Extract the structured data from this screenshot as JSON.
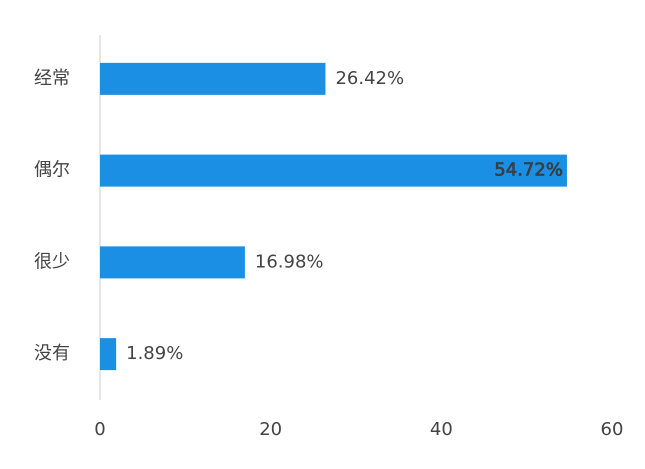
{
  "chart_data": {
    "type": "bar",
    "orientation": "horizontal",
    "categories": [
      "经常",
      "偶尔",
      "很少",
      "没有"
    ],
    "values": [
      26.42,
      54.72,
      16.98,
      1.89
    ],
    "value_labels": [
      "26.42%",
      "54.72%",
      "16.98%",
      "1.89%"
    ],
    "color": "#1a8fe3",
    "xlim": [
      0,
      60
    ],
    "xticks": [
      0,
      20,
      40,
      60
    ],
    "grid": false
  }
}
